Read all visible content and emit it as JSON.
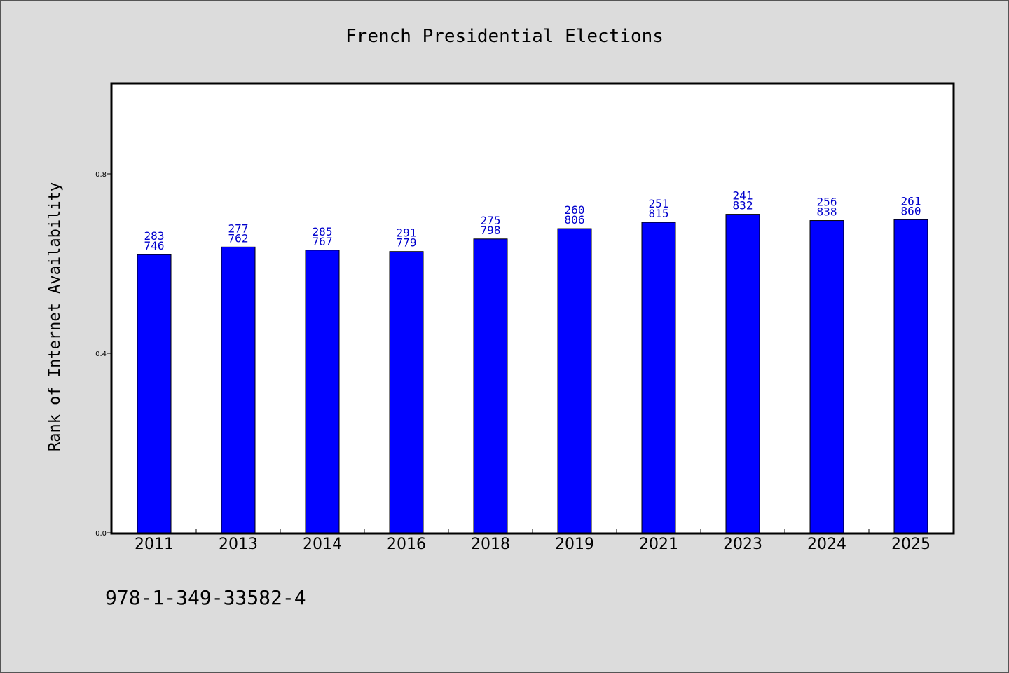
{
  "chart_data": {
    "type": "bar",
    "title": "French Presidential Elections",
    "xlabel": "",
    "ylabel": "Rank of Internet Availability",
    "categories": [
      "2011",
      "2013",
      "2014",
      "2016",
      "2018",
      "2019",
      "2021",
      "2023",
      "2024",
      "2025"
    ],
    "values": [
      0.62,
      0.637,
      0.63,
      0.627,
      0.655,
      0.678,
      0.692,
      0.71,
      0.696,
      0.698
    ],
    "bar_labels_top": [
      "283",
      "277",
      "285",
      "291",
      "275",
      "260",
      "251",
      "241",
      "256",
      "261"
    ],
    "bar_labels_bottom": [
      "746",
      "762",
      "767",
      "779",
      "798",
      "806",
      "815",
      "832",
      "838",
      "860"
    ],
    "ylim": [
      0,
      1.0
    ],
    "yticks": [
      0.0,
      0.4,
      0.8
    ],
    "ytick_labels": [
      "0.0",
      "0.4",
      "0.8"
    ],
    "grid": false,
    "bar_color": "#0000ff",
    "label_color": "#0000cc"
  },
  "footer": {
    "isbn": "978-1-349-33582-4"
  }
}
